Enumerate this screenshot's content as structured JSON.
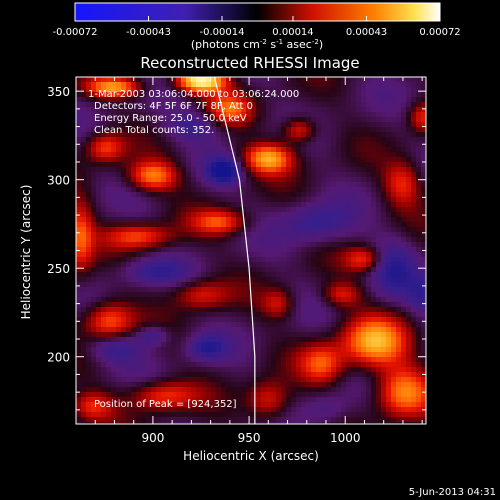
{
  "colorbar": {
    "tick_labels": [
      "-0.00072",
      "-0.00043",
      "-0.00014",
      "0.00014",
      "0.00043",
      "0.00072"
    ],
    "tick_values": [
      -0.00072,
      -0.00043,
      -0.00014,
      0.00014,
      0.00043,
      0.00072
    ],
    "unit_main": "(photons cm",
    "unit_sup1": "-2",
    "unit_mid": " s",
    "unit_sup2": "-1",
    "unit_asec": " asec",
    "unit_sup3": "-2",
    "unit_end": ")",
    "range": [
      -0.00072,
      0.00072
    ]
  },
  "annotations": {
    "time_range": "1-Mar-2003 03:06:04.000 to 03:06:24.000",
    "detectors": "Detectors: 4F 5F 6F 7F 8F, Att 0",
    "energy": "Energy Range: 25.0 - 50.0 keV",
    "clean": "Clean    Total counts: 352.",
    "peak": "Position of Peak = [924,352]",
    "footer_date": "5-Jun-2013 04:31"
  },
  "chart_data": {
    "type": "heatmap",
    "title": "Reconstructed RHESSI Image",
    "xlabel": "Heliocentric X (arcsec)",
    "ylabel": "Heliocentric Y (arcsec)",
    "xlim": [
      860,
      1042
    ],
    "ylim": [
      162,
      358
    ],
    "x_ticks": [
      900,
      950,
      1000
    ],
    "x_tick_labels": [
      "900",
      "950",
      "1000"
    ],
    "y_ticks": [
      200,
      250,
      300,
      350
    ],
    "y_tick_labels": [
      "200",
      "250",
      "300",
      "350"
    ],
    "limb_curve": [
      [
        932,
        358
      ],
      [
        945,
        300
      ],
      [
        950,
        250
      ],
      [
        953,
        200
      ],
      [
        953,
        162
      ]
    ],
    "peak_position": [
      924,
      352
    ],
    "blobs": [
      {
        "x": 925,
        "y": 356,
        "sx": 9,
        "sy": 5,
        "a": 2.2
      },
      {
        "x": 880,
        "y": 352,
        "sx": 10,
        "sy": 4,
        "a": 1.4
      },
      {
        "x": 960,
        "y": 312,
        "sx": 9,
        "sy": 6,
        "a": 1.5
      },
      {
        "x": 976,
        "y": 328,
        "sx": 6,
        "sy": 5,
        "a": 1.0
      },
      {
        "x": 900,
        "y": 302,
        "sx": 9,
        "sy": 6,
        "a": 1.3
      },
      {
        "x": 875,
        "y": 318,
        "sx": 7,
        "sy": 6,
        "a": 1.0
      },
      {
        "x": 893,
        "y": 268,
        "sx": 12,
        "sy": 5,
        "a": 1.0
      },
      {
        "x": 935,
        "y": 276,
        "sx": 10,
        "sy": 5,
        "a": 1.0
      },
      {
        "x": 862,
        "y": 268,
        "sx": 5,
        "sy": 14,
        "a": 1.1
      },
      {
        "x": 1010,
        "y": 255,
        "sx": 7,
        "sy": 5,
        "a": 0.9
      },
      {
        "x": 1030,
        "y": 298,
        "sx": 7,
        "sy": 9,
        "a": 0.9
      },
      {
        "x": 998,
        "y": 235,
        "sx": 7,
        "sy": 5,
        "a": 0.8
      },
      {
        "x": 1015,
        "y": 208,
        "sx": 12,
        "sy": 10,
        "a": 1.5
      },
      {
        "x": 1030,
        "y": 180,
        "sx": 10,
        "sy": 10,
        "a": 1.3
      },
      {
        "x": 988,
        "y": 196,
        "sx": 8,
        "sy": 8,
        "a": 1.0
      },
      {
        "x": 877,
        "y": 220,
        "sx": 9,
        "sy": 8,
        "a": 1.2
      },
      {
        "x": 905,
        "y": 178,
        "sx": 12,
        "sy": 6,
        "a": 1.0
      },
      {
        "x": 868,
        "y": 172,
        "sx": 8,
        "sy": 6,
        "a": 0.9
      },
      {
        "x": 925,
        "y": 235,
        "sx": 10,
        "sy": 6,
        "a": 0.8
      },
      {
        "x": 940,
        "y": 340,
        "sx": 8,
        "sy": 6,
        "a": 1.0
      },
      {
        "x": 965,
        "y": 230,
        "sx": 6,
        "sy": 6,
        "a": 0.7
      },
      {
        "x": 960,
        "y": 175,
        "sx": 8,
        "sy": 8,
        "a": 0.9
      },
      {
        "x": 1040,
        "y": 335,
        "sx": 5,
        "sy": 6,
        "a": 0.8
      },
      {
        "x": 937,
        "y": 305,
        "sx": 6,
        "sy": 5,
        "a": -1.2
      },
      {
        "x": 920,
        "y": 330,
        "sx": 10,
        "sy": 6,
        "a": -0.6
      },
      {
        "x": 985,
        "y": 275,
        "sx": 12,
        "sy": 8,
        "a": -0.7
      },
      {
        "x": 900,
        "y": 248,
        "sx": 12,
        "sy": 5,
        "a": -0.6
      },
      {
        "x": 880,
        "y": 205,
        "sx": 10,
        "sy": 6,
        "a": -0.7
      },
      {
        "x": 928,
        "y": 205,
        "sx": 7,
        "sy": 5,
        "a": -0.8
      },
      {
        "x": 900,
        "y": 212,
        "sx": 6,
        "sy": 4,
        "a": -0.7
      },
      {
        "x": 1025,
        "y": 250,
        "sx": 8,
        "sy": 12,
        "a": -0.7
      },
      {
        "x": 990,
        "y": 170,
        "sx": 8,
        "sy": 6,
        "a": -0.4
      },
      {
        "x": 1040,
        "y": 235,
        "sx": 5,
        "sy": 8,
        "a": -0.6
      }
    ]
  }
}
